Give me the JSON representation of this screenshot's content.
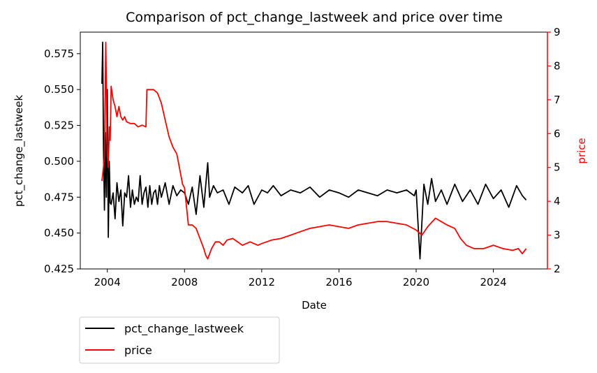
{
  "chart_data": {
    "type": "line",
    "title": "Comparison of pct_change_lastweek and price over time",
    "xlabel": "Date",
    "ylabel_left": "pct_change_lastweek",
    "ylabel_right": "price",
    "xlim": [
      2002.6,
      2026.8
    ],
    "ylim_left": [
      0.425,
      0.59
    ],
    "ylim_right": [
      2.0,
      9.0
    ],
    "x_ticks": [
      2004,
      2008,
      2012,
      2016,
      2020,
      2024
    ],
    "x_tick_labels": [
      "2004",
      "2008",
      "2012",
      "2016",
      "2020",
      "2024"
    ],
    "y_left_ticks": [
      0.425,
      0.45,
      0.475,
      0.5,
      0.525,
      0.55,
      0.575
    ],
    "y_left_tick_labels": [
      "0.425",
      "0.450",
      "0.475",
      "0.500",
      "0.525",
      "0.550",
      "0.575"
    ],
    "y_right_ticks": [
      2,
      3,
      4,
      5,
      6,
      7,
      8,
      9
    ],
    "y_right_tick_labels": [
      "2",
      "3",
      "4",
      "5",
      "6",
      "7",
      "8",
      "9"
    ],
    "grid": false,
    "legend_placement": "below-left",
    "series": [
      {
        "name": "pct_change_lastweek",
        "color": "#000000",
        "axis": "left",
        "x": [
          2003.72,
          2003.76,
          2003.8,
          2003.85,
          2003.9,
          2003.95,
          2004.0,
          2004.05,
          2004.1,
          2004.15,
          2004.2,
          2004.3,
          2004.4,
          2004.5,
          2004.6,
          2004.7,
          2004.8,
          2004.9,
          2005.0,
          2005.1,
          2005.2,
          2005.3,
          2005.4,
          2005.5,
          2005.6,
          2005.7,
          2005.8,
          2005.9,
          2006.0,
          2006.1,
          2006.2,
          2006.3,
          2006.4,
          2006.5,
          2006.6,
          2006.7,
          2006.8,
          2006.9,
          2007.0,
          2007.2,
          2007.4,
          2007.6,
          2007.8,
          2008.0,
          2008.2,
          2008.4,
          2008.6,
          2008.8,
          2009.0,
          2009.2,
          2009.3,
          2009.5,
          2009.7,
          2010.0,
          2010.3,
          2010.6,
          2011.0,
          2011.3,
          2011.6,
          2012.0,
          2012.3,
          2012.6,
          2013.0,
          2013.5,
          2014.0,
          2014.5,
          2015.0,
          2015.5,
          2016.0,
          2016.5,
          2017.0,
          2017.5,
          2018.0,
          2018.5,
          2019.0,
          2019.5,
          2019.9,
          2020.0,
          2020.2,
          2020.4,
          2020.6,
          2020.8,
          2021.0,
          2021.3,
          2021.6,
          2022.0,
          2022.4,
          2022.8,
          2023.2,
          2023.6,
          2024.0,
          2024.4,
          2024.8,
          2025.2,
          2025.5,
          2025.7
        ],
        "values": [
          0.554,
          0.583,
          0.51,
          0.466,
          0.52,
          0.475,
          0.55,
          0.447,
          0.5,
          0.471,
          0.47,
          0.478,
          0.46,
          0.485,
          0.472,
          0.48,
          0.455,
          0.478,
          0.475,
          0.49,
          0.468,
          0.48,
          0.47,
          0.475,
          0.472,
          0.49,
          0.47,
          0.478,
          0.482,
          0.468,
          0.483,
          0.47,
          0.478,
          0.48,
          0.47,
          0.483,
          0.475,
          0.48,
          0.485,
          0.47,
          0.483,
          0.476,
          0.48,
          0.478,
          0.47,
          0.482,
          0.463,
          0.49,
          0.468,
          0.499,
          0.475,
          0.483,
          0.478,
          0.48,
          0.47,
          0.482,
          0.478,
          0.483,
          0.47,
          0.48,
          0.478,
          0.483,
          0.476,
          0.48,
          0.478,
          0.482,
          0.475,
          0.48,
          0.478,
          0.475,
          0.48,
          0.478,
          0.476,
          0.48,
          0.478,
          0.48,
          0.476,
          0.48,
          0.432,
          0.484,
          0.47,
          0.488,
          0.472,
          0.48,
          0.47,
          0.484,
          0.472,
          0.48,
          0.47,
          0.484,
          0.474,
          0.48,
          0.468,
          0.483,
          0.476,
          0.473
        ]
      },
      {
        "name": "price",
        "color": "#ff0000",
        "axis": "right",
        "x": [
          2003.72,
          2003.78,
          2003.85,
          2003.92,
          2004.0,
          2004.05,
          2004.1,
          2004.15,
          2004.2,
          2004.3,
          2004.4,
          2004.5,
          2004.6,
          2004.7,
          2004.8,
          2004.9,
          2005.0,
          2005.2,
          2005.4,
          2005.6,
          2005.8,
          2006.0,
          2006.05,
          2006.2,
          2006.4,
          2006.6,
          2006.8,
          2007.0,
          2007.2,
          2007.4,
          2007.6,
          2007.8,
          2007.9,
          2008.0,
          2008.2,
          2008.4,
          2008.6,
          2008.8,
          2009.0,
          2009.1,
          2009.2,
          2009.4,
          2009.6,
          2009.8,
          2010.0,
          2010.2,
          2010.5,
          2011.0,
          2011.4,
          2011.8,
          2012.0,
          2012.5,
          2013.0,
          2013.5,
          2014.0,
          2014.5,
          2015.0,
          2015.5,
          2016.0,
          2016.5,
          2017.0,
          2017.5,
          2018.0,
          2018.5,
          2019.0,
          2019.5,
          2020.0,
          2020.3,
          2020.6,
          2021.0,
          2021.3,
          2021.6,
          2022.0,
          2022.3,
          2022.6,
          2023.0,
          2023.5,
          2024.0,
          2024.5,
          2025.0,
          2025.3,
          2025.5,
          2025.7
        ],
        "values": [
          4.6,
          4.9,
          5.3,
          8.7,
          5.4,
          5.0,
          6.2,
          5.8,
          7.4,
          7.0,
          6.8,
          6.5,
          6.8,
          6.5,
          6.4,
          6.5,
          6.35,
          6.3,
          6.3,
          6.2,
          6.25,
          6.2,
          7.3,
          7.3,
          7.3,
          7.2,
          6.9,
          6.4,
          5.9,
          5.6,
          5.4,
          4.8,
          4.5,
          4.4,
          3.3,
          3.3,
          3.2,
          2.9,
          2.6,
          2.4,
          2.3,
          2.6,
          2.8,
          2.8,
          2.7,
          2.85,
          2.9,
          2.7,
          2.8,
          2.7,
          2.75,
          2.85,
          2.9,
          3.0,
          3.1,
          3.2,
          3.25,
          3.3,
          3.25,
          3.2,
          3.3,
          3.35,
          3.4,
          3.4,
          3.35,
          3.3,
          3.15,
          3.0,
          3.25,
          3.5,
          3.4,
          3.3,
          3.2,
          2.9,
          2.7,
          2.6,
          2.6,
          2.7,
          2.6,
          2.55,
          2.6,
          2.45,
          2.6
        ]
      }
    ]
  }
}
